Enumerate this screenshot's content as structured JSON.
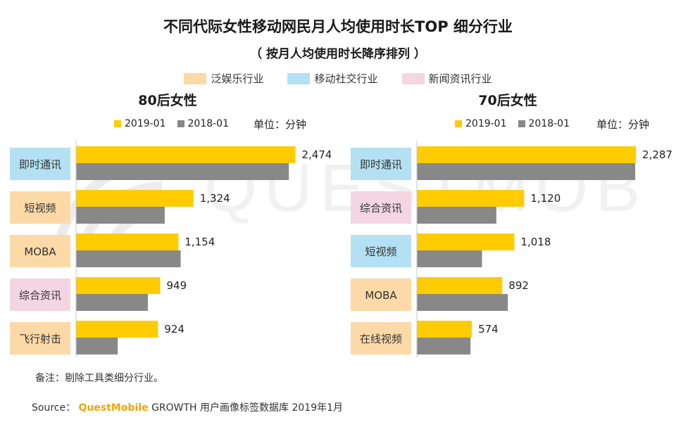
{
  "title": "不同代际女性移动网民月人均使用时长TOP 细分行业",
  "subtitle": "（ 按月人均使用时长降序排列 ）",
  "industry_legend": [
    {
      "label": "泛娱乐行业",
      "color": "#fdd9a8"
    },
    {
      "label": "移动社交行业",
      "color": "#b3e0f2"
    },
    {
      "label": "新闻资讯行业",
      "color": "#f3d6e2"
    }
  ],
  "colors": {
    "series_2019": "#ffcc00",
    "series_2018": "#888888",
    "text": "#222222"
  },
  "unit_label": "单位：分钟",
  "footnote": "备注：剔除工具类细分行业。",
  "source": {
    "prefix": "Source：",
    "brand": "QuestMobile",
    "rest": " GROWTH 用户画像标签数据库 2019年1月"
  },
  "watermark": {
    "text": "QUESTMOBILE"
  },
  "chart_data": [
    {
      "type": "bar",
      "title": "80后女性",
      "orientation": "horizontal",
      "categories": [
        "即时通讯",
        "短视频",
        "MOBA",
        "综合资讯",
        "飞行射击"
      ],
      "category_industry": [
        1,
        0,
        0,
        2,
        0
      ],
      "series": [
        {
          "name": "2019-01",
          "values": [
            2474,
            1324,
            1154,
            949,
            924
          ],
          "labels": [
            "2,474",
            "1,324",
            "1,154",
            "949",
            "924"
          ]
        },
        {
          "name": "2018-01",
          "values": [
            2400,
            1000,
            1180,
            810,
            470
          ]
        }
      ],
      "xlim": [
        0,
        2700
      ],
      "unit": "分钟"
    },
    {
      "type": "bar",
      "title": "70后女性",
      "orientation": "horizontal",
      "categories": [
        "即时通讯",
        "综合资讯",
        "短视频",
        "MOBA",
        "在线视频"
      ],
      "category_industry": [
        1,
        2,
        1,
        0,
        0
      ],
      "series": [
        {
          "name": "2019-01",
          "values": [
            2287,
            1120,
            1018,
            892,
            574
          ],
          "labels": [
            "2,287",
            "1,120",
            "1,018",
            "892",
            "574"
          ]
        },
        {
          "name": "2018-01",
          "values": [
            2280,
            830,
            680,
            950,
            560
          ]
        }
      ],
      "xlim": [
        0,
        2500
      ],
      "unit": "分钟"
    }
  ]
}
